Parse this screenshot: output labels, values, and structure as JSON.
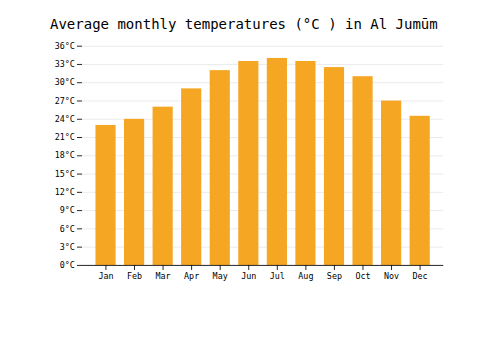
{
  "chart_data": {
    "type": "bar",
    "title": "Average monthly temperatures (°C ) in Al Jumūm",
    "categories": [
      "Jan",
      "Feb",
      "Mar",
      "Apr",
      "May",
      "Jun",
      "Jul",
      "Aug",
      "Sep",
      "Oct",
      "Nov",
      "Dec"
    ],
    "values": [
      23.0,
      24.0,
      26.0,
      29.0,
      32.0,
      33.5,
      34.0,
      33.5,
      32.5,
      31.0,
      27.0,
      24.5
    ],
    "color": "#F5A623",
    "ylim": [
      0,
      36
    ],
    "yticks": [
      {
        "value": 0,
        "label": "0°C"
      },
      {
        "value": 3,
        "label": "3°C"
      },
      {
        "value": 6,
        "label": "6°C"
      },
      {
        "value": 9,
        "label": "9°C"
      },
      {
        "value": 12,
        "label": "12°C"
      },
      {
        "value": 15,
        "label": "15°C"
      },
      {
        "value": 18,
        "label": "18°C"
      },
      {
        "value": 21,
        "label": "21°C"
      },
      {
        "value": 24,
        "label": "24°C"
      },
      {
        "value": 27,
        "label": "27°C"
      },
      {
        "value": 30,
        "label": "30°C"
      },
      {
        "value": 33,
        "label": "33°C"
      },
      {
        "value": 36,
        "label": "36°C"
      }
    ],
    "grid": true
  }
}
